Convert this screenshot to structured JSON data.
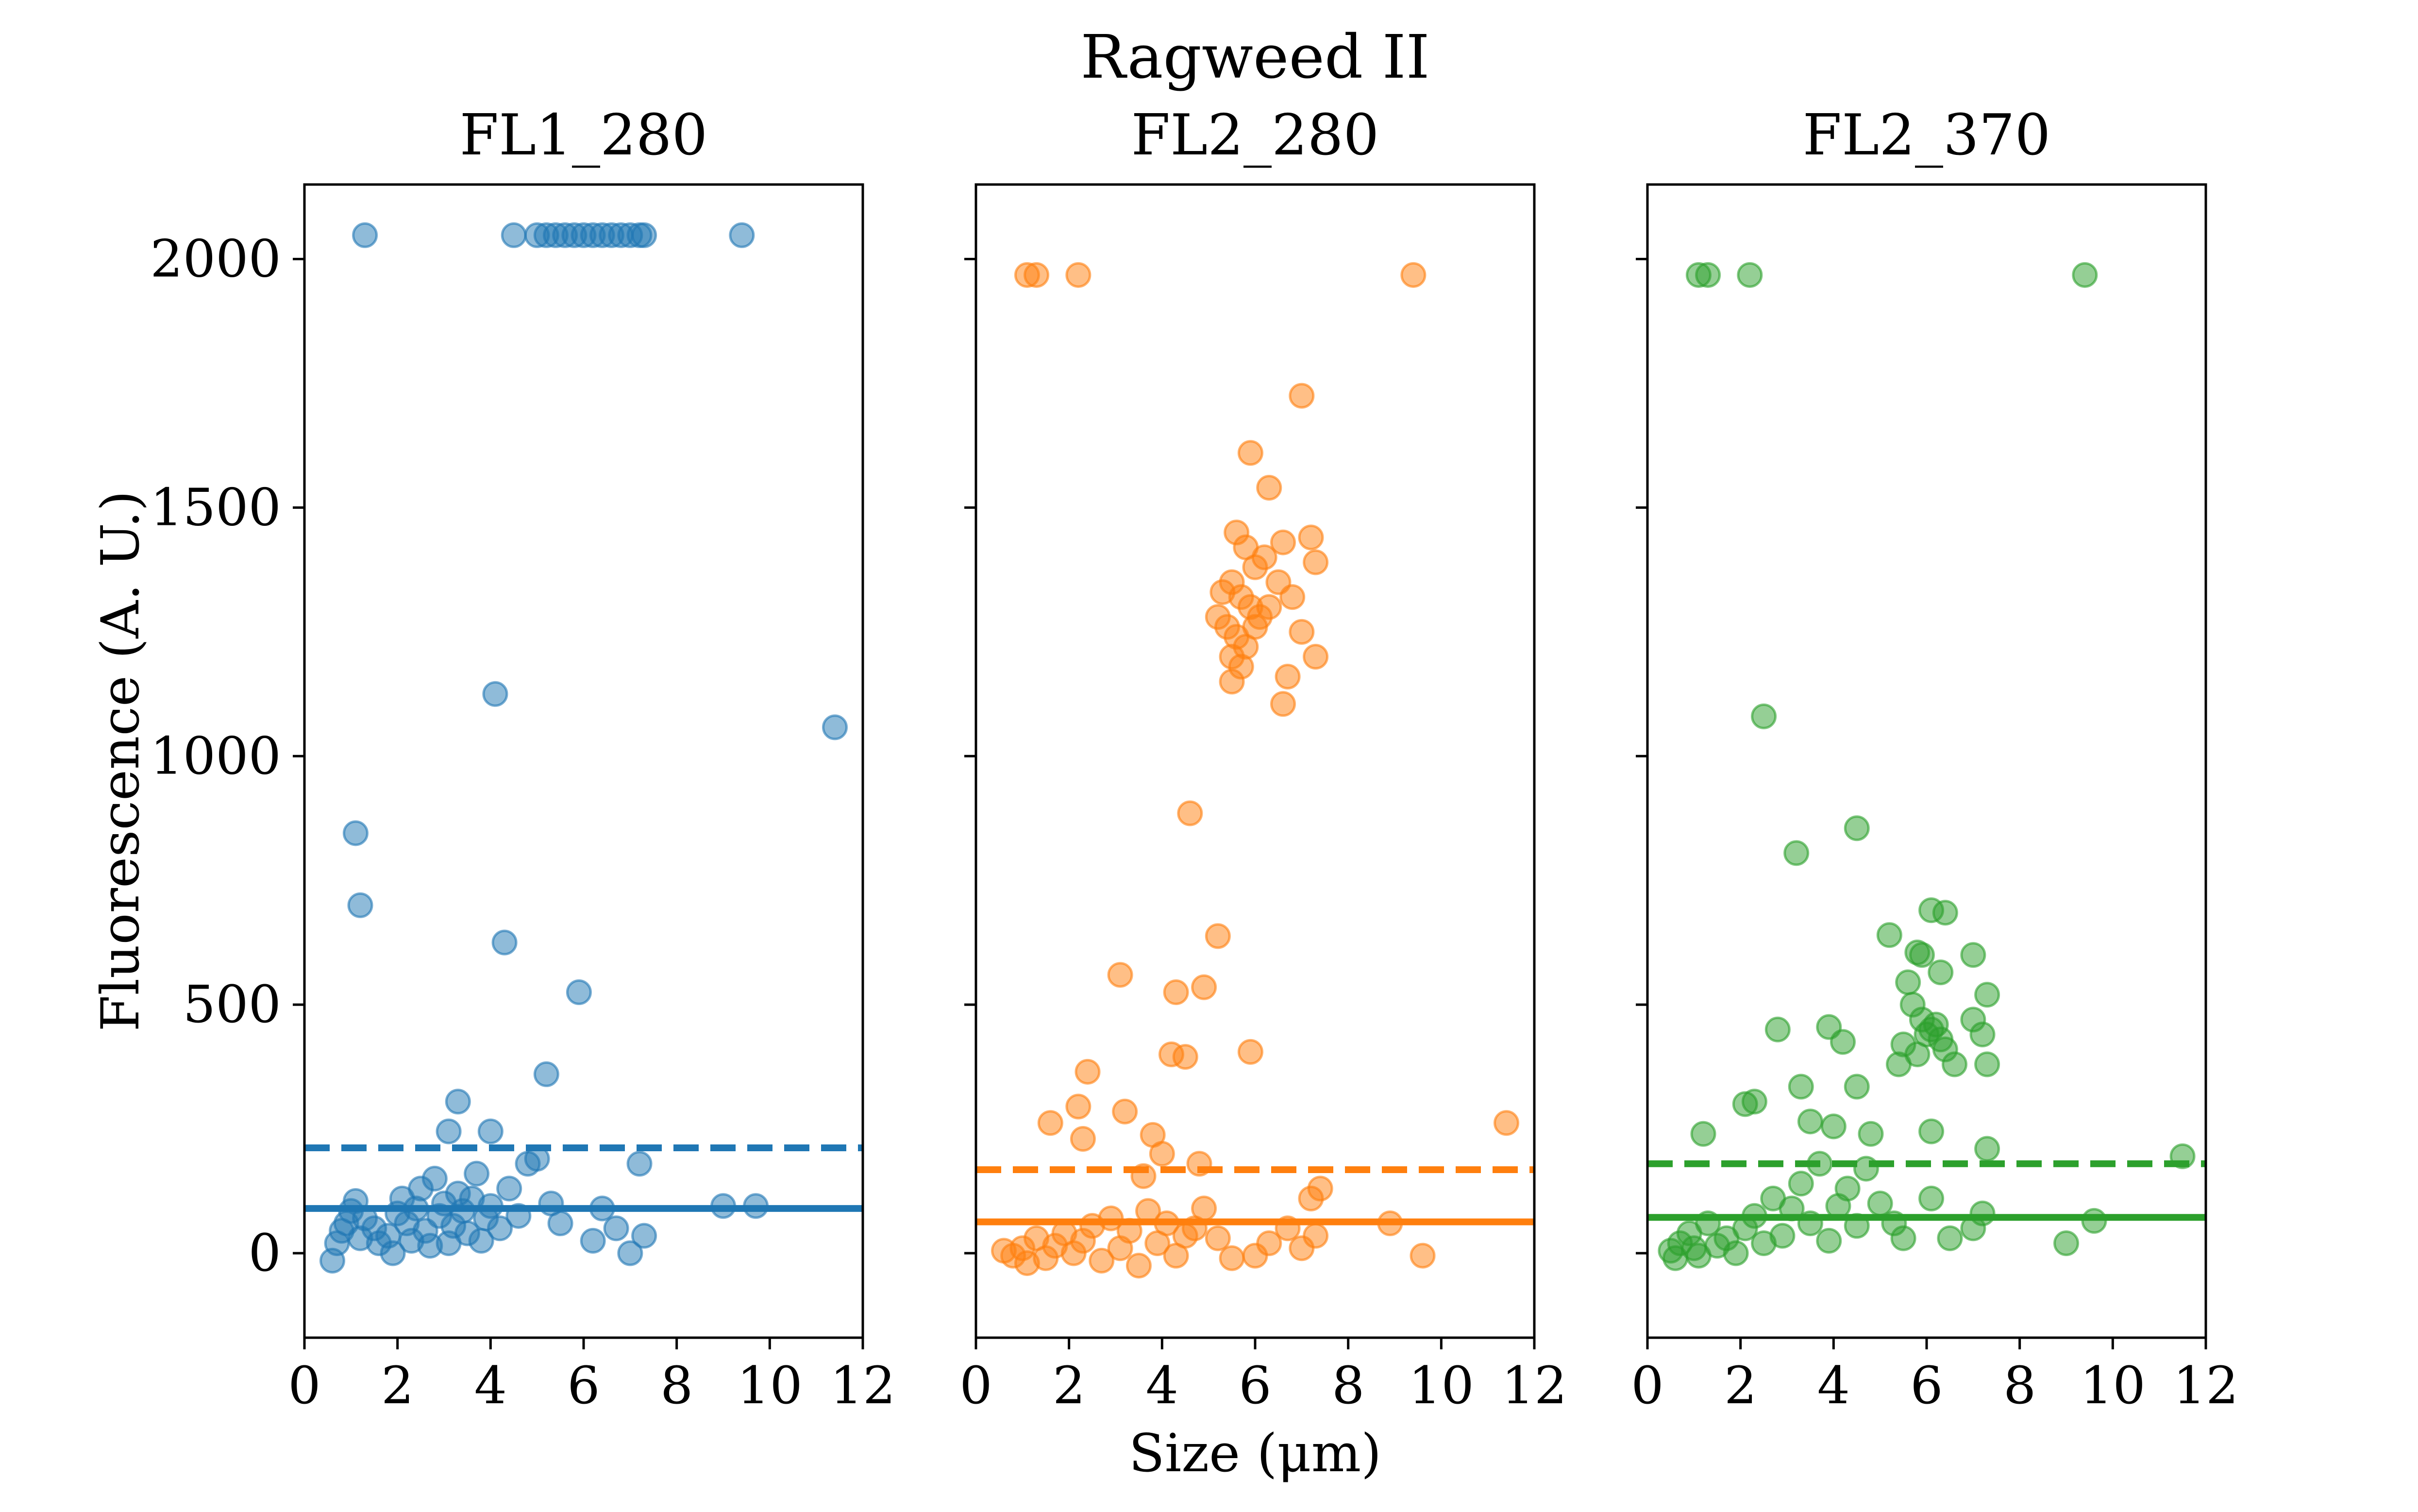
{
  "chart_data": {
    "type": "scatter",
    "title": "Ragweed II",
    "xlabel": "Size (μm)",
    "ylabel": "Fluorescence (A. U.)",
    "xlim": [
      0,
      12
    ],
    "ylim": [
      -170,
      2150
    ],
    "xticks": [
      0,
      2,
      4,
      6,
      8,
      10,
      12
    ],
    "yticks": [
      0,
      500,
      1000,
      1500,
      2000
    ],
    "grid": false,
    "panels": [
      {
        "title": "FL1_280",
        "color": "#1f77b4",
        "threshold_solid": 90,
        "threshold_dashed": 212,
        "points": [
          [
            1.3,
            2048
          ],
          [
            4.5,
            2048
          ],
          [
            5.0,
            2048
          ],
          [
            5.2,
            2048
          ],
          [
            5.4,
            2048
          ],
          [
            5.6,
            2048
          ],
          [
            5.8,
            2048
          ],
          [
            6.0,
            2048
          ],
          [
            6.2,
            2048
          ],
          [
            6.4,
            2048
          ],
          [
            6.6,
            2048
          ],
          [
            6.8,
            2048
          ],
          [
            7.0,
            2048
          ],
          [
            7.2,
            2048
          ],
          [
            7.3,
            2048
          ],
          [
            9.4,
            2048
          ],
          [
            4.1,
            1125
          ],
          [
            11.4,
            1058
          ],
          [
            1.1,
            845
          ],
          [
            1.2,
            700
          ],
          [
            4.3,
            625
          ],
          [
            5.9,
            525
          ],
          [
            5.2,
            360
          ],
          [
            3.3,
            305
          ],
          [
            4.0,
            245
          ],
          [
            3.1,
            245
          ],
          [
            0.6,
            -15
          ],
          [
            0.7,
            20
          ],
          [
            0.8,
            45
          ],
          [
            0.9,
            60
          ],
          [
            1.0,
            85
          ],
          [
            1.1,
            105
          ],
          [
            1.2,
            30
          ],
          [
            1.3,
            70
          ],
          [
            1.5,
            50
          ],
          [
            1.6,
            20
          ],
          [
            1.8,
            35
          ],
          [
            1.9,
            0
          ],
          [
            2.0,
            80
          ],
          [
            2.1,
            110
          ],
          [
            2.2,
            60
          ],
          [
            2.3,
            25
          ],
          [
            2.4,
            90
          ],
          [
            2.5,
            130
          ],
          [
            2.6,
            45
          ],
          [
            2.7,
            15
          ],
          [
            2.8,
            150
          ],
          [
            2.9,
            75
          ],
          [
            3.0,
            100
          ],
          [
            3.1,
            20
          ],
          [
            3.2,
            55
          ],
          [
            3.3,
            120
          ],
          [
            3.4,
            85
          ],
          [
            3.5,
            40
          ],
          [
            3.6,
            110
          ],
          [
            3.7,
            160
          ],
          [
            3.8,
            25
          ],
          [
            3.9,
            70
          ],
          [
            4.0,
            95
          ],
          [
            4.2,
            50
          ],
          [
            4.4,
            130
          ],
          [
            4.6,
            75
          ],
          [
            4.8,
            180
          ],
          [
            5.0,
            190
          ],
          [
            5.3,
            100
          ],
          [
            5.5,
            60
          ],
          [
            6.2,
            25
          ],
          [
            6.4,
            90
          ],
          [
            6.7,
            50
          ],
          [
            7.0,
            0
          ],
          [
            7.2,
            180
          ],
          [
            7.3,
            35
          ],
          [
            9.0,
            95
          ],
          [
            9.7,
            95
          ]
        ]
      },
      {
        "title": "FL2_280",
        "color": "#ff7f0e",
        "threshold_solid": 63,
        "threshold_dashed": 168,
        "points": [
          [
            1.1,
            1968
          ],
          [
            1.3,
            1968
          ],
          [
            2.2,
            1968
          ],
          [
            9.4,
            1968
          ],
          [
            7.0,
            1725
          ],
          [
            5.9,
            1610
          ],
          [
            6.3,
            1540
          ],
          [
            5.6,
            1450
          ],
          [
            5.8,
            1420
          ],
          [
            6.0,
            1380
          ],
          [
            6.2,
            1400
          ],
          [
            5.5,
            1350
          ],
          [
            5.7,
            1320
          ],
          [
            5.9,
            1300
          ],
          [
            6.1,
            1280
          ],
          [
            5.4,
            1260
          ],
          [
            5.6,
            1240
          ],
          [
            5.8,
            1220
          ],
          [
            6.0,
            1260
          ],
          [
            6.3,
            1300
          ],
          [
            5.3,
            1330
          ],
          [
            5.5,
            1200
          ],
          [
            5.7,
            1180
          ],
          [
            6.5,
            1350
          ],
          [
            6.8,
            1320
          ],
          [
            7.2,
            1440
          ],
          [
            7.3,
            1390
          ],
          [
            7.0,
            1250
          ],
          [
            7.3,
            1200
          ],
          [
            6.7,
            1160
          ],
          [
            6.6,
            1105
          ],
          [
            5.5,
            1150
          ],
          [
            5.2,
            1280
          ],
          [
            6.6,
            1430
          ],
          [
            4.6,
            885
          ],
          [
            5.2,
            638
          ],
          [
            3.1,
            560
          ],
          [
            4.3,
            525
          ],
          [
            4.9,
            535
          ],
          [
            4.2,
            400
          ],
          [
            4.5,
            395
          ],
          [
            5.9,
            405
          ],
          [
            2.4,
            365
          ],
          [
            2.2,
            295
          ],
          [
            3.2,
            285
          ],
          [
            1.6,
            262
          ],
          [
            11.4,
            262
          ],
          [
            3.8,
            238
          ],
          [
            4.0,
            200
          ],
          [
            2.3,
            230
          ],
          [
            3.6,
            155
          ],
          [
            4.8,
            180
          ],
          [
            0.6,
            5
          ],
          [
            0.8,
            -5
          ],
          [
            1.0,
            10
          ],
          [
            1.1,
            -20
          ],
          [
            1.3,
            30
          ],
          [
            1.5,
            -10
          ],
          [
            1.7,
            15
          ],
          [
            1.9,
            40
          ],
          [
            2.1,
            0
          ],
          [
            2.3,
            25
          ],
          [
            2.5,
            55
          ],
          [
            2.7,
            -15
          ],
          [
            2.9,
            70
          ],
          [
            3.1,
            10
          ],
          [
            3.3,
            45
          ],
          [
            3.5,
            -25
          ],
          [
            3.7,
            85
          ],
          [
            3.9,
            20
          ],
          [
            4.1,
            60
          ],
          [
            4.3,
            -5
          ],
          [
            4.5,
            35
          ],
          [
            4.7,
            50
          ],
          [
            4.9,
            90
          ],
          [
            5.2,
            30
          ],
          [
            5.5,
            -10
          ],
          [
            6.0,
            -5
          ],
          [
            6.3,
            20
          ],
          [
            6.7,
            50
          ],
          [
            7.0,
            10
          ],
          [
            7.3,
            35
          ],
          [
            7.4,
            130
          ],
          [
            7.2,
            110
          ],
          [
            8.9,
            60
          ],
          [
            9.6,
            -5
          ]
        ]
      },
      {
        "title": "FL2_370",
        "color": "#2ca02c",
        "threshold_solid": 72,
        "threshold_dashed": 180,
        "points": [
          [
            1.1,
            1968
          ],
          [
            1.3,
            1968
          ],
          [
            2.2,
            1968
          ],
          [
            9.4,
            1968
          ],
          [
            2.5,
            1080
          ],
          [
            3.2,
            805
          ],
          [
            4.5,
            855
          ],
          [
            6.1,
            690
          ],
          [
            6.4,
            685
          ],
          [
            5.8,
            605
          ],
          [
            5.9,
            600
          ],
          [
            5.2,
            640
          ],
          [
            7.0,
            600
          ],
          [
            7.3,
            520
          ],
          [
            5.6,
            545
          ],
          [
            6.3,
            565
          ],
          [
            5.7,
            500
          ],
          [
            5.9,
            470
          ],
          [
            6.1,
            450
          ],
          [
            6.3,
            430
          ],
          [
            5.5,
            420
          ],
          [
            5.8,
            400
          ],
          [
            6.0,
            440
          ],
          [
            6.2,
            460
          ],
          [
            6.4,
            410
          ],
          [
            5.4,
            380
          ],
          [
            6.6,
            380
          ],
          [
            7.0,
            470
          ],
          [
            7.2,
            440
          ],
          [
            7.3,
            380
          ],
          [
            2.8,
            450
          ],
          [
            3.9,
            455
          ],
          [
            4.5,
            335
          ],
          [
            4.2,
            425
          ],
          [
            3.3,
            335
          ],
          [
            2.3,
            305
          ],
          [
            2.1,
            300
          ],
          [
            3.5,
            265
          ],
          [
            4.0,
            255
          ],
          [
            4.8,
            240
          ],
          [
            6.1,
            245
          ],
          [
            7.3,
            210
          ],
          [
            1.2,
            240
          ],
          [
            11.5,
            195
          ],
          [
            9.6,
            65
          ],
          [
            9.0,
            20
          ],
          [
            0.5,
            5
          ],
          [
            0.7,
            20
          ],
          [
            0.9,
            40
          ],
          [
            1.1,
            -5
          ],
          [
            1.3,
            60
          ],
          [
            1.5,
            15
          ],
          [
            1.7,
            30
          ],
          [
            1.9,
            0
          ],
          [
            2.1,
            50
          ],
          [
            2.3,
            75
          ],
          [
            2.5,
            20
          ],
          [
            2.7,
            110
          ],
          [
            2.9,
            35
          ],
          [
            3.1,
            90
          ],
          [
            3.3,
            140
          ],
          [
            3.5,
            60
          ],
          [
            3.7,
            180
          ],
          [
            3.9,
            25
          ],
          [
            4.1,
            95
          ],
          [
            4.3,
            130
          ],
          [
            4.5,
            55
          ],
          [
            4.7,
            170
          ],
          [
            5.0,
            100
          ],
          [
            5.3,
            60
          ],
          [
            5.5,
            30
          ],
          [
            6.1,
            110
          ],
          [
            6.5,
            30
          ],
          [
            7.0,
            50
          ],
          [
            7.2,
            80
          ],
          [
            0.6,
            -10
          ],
          [
            1.0,
            10
          ]
        ]
      }
    ]
  }
}
